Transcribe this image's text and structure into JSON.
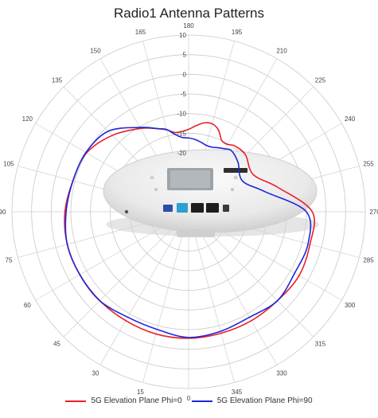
{
  "chart_data": {
    "type": "polar-line",
    "title": "Radio1 Antenna Patterns",
    "angle_ticks": [
      "0",
      "15",
      "30",
      "45",
      "60",
      "75",
      "90",
      "105",
      "120",
      "135",
      "150",
      "165",
      "180",
      "195",
      "210",
      "225",
      "240",
      "255",
      "270",
      "285",
      "300",
      "315",
      "330",
      "345"
    ],
    "radial_ticks": [
      "10",
      "5",
      "0",
      "-5",
      "-10",
      "-15",
      "-20"
    ],
    "radial_range": [
      -35,
      10
    ],
    "angle_direction": "clockwise",
    "angle_zero": "bottom",
    "grid": true,
    "legend_position": "bottom",
    "series": [
      {
        "name": "5G Elevation Plane Phi=0",
        "color": "#e8202a",
        "angles": [
          0,
          15,
          30,
          45,
          60,
          75,
          90,
          105,
          120,
          135,
          150,
          160,
          165,
          170,
          175,
          180,
          185,
          190,
          195,
          200,
          205,
          210,
          215,
          225,
          240,
          255,
          270,
          285,
          300,
          315,
          330,
          345,
          360
        ],
        "values": [
          -2.8,
          -2.8,
          -3,
          -3,
          -3,
          -3,
          -3.5,
          -4.5,
          -5,
          -7.5,
          -10.5,
          -12.5,
          -13.4,
          -14.5,
          -14.5,
          -14,
          -13,
          -12,
          -11.8,
          -12.8,
          -15,
          -15.2,
          -14.5,
          -14.5,
          -16,
          -11.3,
          -3.5,
          -3,
          -2.5,
          -3,
          -3,
          -3,
          -2.8
        ]
      },
      {
        "name": "5G Elevation Plane Phi=90",
        "color": "#1c27d8",
        "angles": [
          0,
          15,
          30,
          45,
          60,
          75,
          90,
          105,
          120,
          135,
          150,
          160,
          165,
          170,
          175,
          180,
          185,
          190,
          195,
          200,
          205,
          210,
          215,
          225,
          240,
          255,
          270,
          285,
          300,
          315,
          330,
          345,
          360
        ],
        "values": [
          -3,
          -4,
          -4,
          -3,
          -3,
          -3,
          -3.8,
          -4.5,
          -4.8,
          -6,
          -10.2,
          -12.5,
          -13.3,
          -15,
          -16,
          -16.2,
          -16.5,
          -17,
          -17.5,
          -17.5,
          -17,
          -16.5,
          -16,
          -17.2,
          -19.2,
          -15,
          -5,
          -3.5,
          -3.8,
          -3,
          -4,
          -3.5,
          -3
        ]
      }
    ]
  }
}
